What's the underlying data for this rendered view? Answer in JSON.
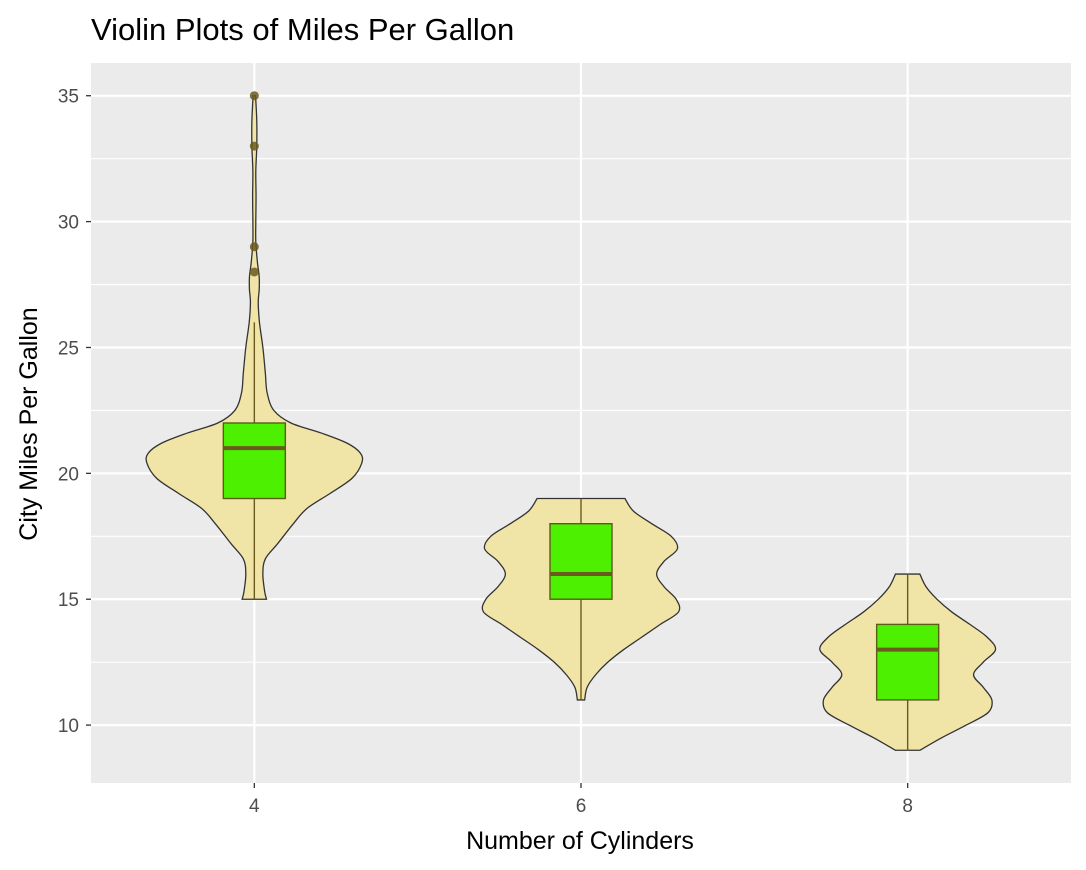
{
  "chart_data": {
    "type": "violin",
    "title": "Violin Plots of Miles Per Gallon",
    "xlabel": "Number of Cylinders",
    "ylabel": "City Miles Per Gallon",
    "categories": [
      "4",
      "6",
      "8"
    ],
    "xlim": [
      3,
      9
    ],
    "ylim": [
      7.7,
      36.3
    ],
    "yticks": [
      10,
      15,
      20,
      25,
      30,
      35
    ],
    "grid": true,
    "legend": "none",
    "colors": {
      "panel_background": "#ebebeb",
      "grid_line": "#ffffff",
      "violin_fill": "#f0e4a7",
      "violin_stroke": "#333333",
      "box_fill": "#4cf000",
      "box_stroke": "#5c5c1a",
      "median_line": "#6b5a1e",
      "whisker": "#6b5a1e",
      "outlier": "#6b5a1e"
    },
    "groups": [
      {
        "category": "4",
        "min": 15,
        "max": 35,
        "box": {
          "q1": 19,
          "median": 21,
          "q3": 22,
          "whisker_low": 15,
          "whisker_high": 26
        },
        "outliers": [
          28,
          29,
          33,
          35
        ],
        "density_profile": [
          [
            15.0,
            0.1
          ],
          [
            15.3,
            0.085
          ],
          [
            16.0,
            0.07
          ],
          [
            16.6,
            0.09
          ],
          [
            17.2,
            0.19
          ],
          [
            18.0,
            0.32
          ],
          [
            18.6,
            0.43
          ],
          [
            19.2,
            0.62
          ],
          [
            19.8,
            0.8
          ],
          [
            20.4,
            0.88
          ],
          [
            20.8,
            0.87
          ],
          [
            21.2,
            0.76
          ],
          [
            21.6,
            0.55
          ],
          [
            22.0,
            0.3
          ],
          [
            22.5,
            0.16
          ],
          [
            23.2,
            0.105
          ],
          [
            24.0,
            0.09
          ],
          [
            25.0,
            0.07
          ],
          [
            26.0,
            0.042
          ],
          [
            26.8,
            0.032
          ],
          [
            27.3,
            0.04
          ],
          [
            27.8,
            0.04
          ],
          [
            28.4,
            0.025
          ],
          [
            29.2,
            0.012
          ],
          [
            30.0,
            0.012
          ],
          [
            31.0,
            0.014
          ],
          [
            32.0,
            0.012
          ],
          [
            33.0,
            0.02
          ],
          [
            34.0,
            0.02
          ],
          [
            35.0,
            0.01
          ]
        ]
      },
      {
        "category": "6",
        "min": 11,
        "max": 19,
        "box": {
          "q1": 15,
          "median": 16,
          "q3": 18,
          "whisker_low": 11,
          "whisker_high": 19
        },
        "outliers": [],
        "density_profile": [
          [
            11.0,
            0.03
          ],
          [
            11.5,
            0.05
          ],
          [
            12.0,
            0.12
          ],
          [
            12.5,
            0.22
          ],
          [
            13.0,
            0.35
          ],
          [
            13.5,
            0.5
          ],
          [
            14.0,
            0.65
          ],
          [
            14.5,
            0.8
          ],
          [
            15.0,
            0.78
          ],
          [
            15.5,
            0.68
          ],
          [
            16.0,
            0.62
          ],
          [
            16.5,
            0.68
          ],
          [
            17.0,
            0.79
          ],
          [
            17.5,
            0.74
          ],
          [
            18.0,
            0.58
          ],
          [
            18.5,
            0.43
          ],
          [
            19.0,
            0.36
          ]
        ]
      },
      {
        "category": "8",
        "min": 9,
        "max": 16,
        "box": {
          "q1": 11,
          "median": 13,
          "q3": 14,
          "whisker_low": 9,
          "whisker_high": 16
        },
        "outliers": [],
        "density_profile": [
          [
            9.0,
            0.1
          ],
          [
            9.5,
            0.28
          ],
          [
            10.0,
            0.48
          ],
          [
            10.5,
            0.66
          ],
          [
            11.0,
            0.69
          ],
          [
            11.5,
            0.62
          ],
          [
            12.0,
            0.54
          ],
          [
            12.5,
            0.62
          ],
          [
            13.0,
            0.72
          ],
          [
            13.5,
            0.65
          ],
          [
            14.0,
            0.51
          ],
          [
            14.5,
            0.36
          ],
          [
            15.0,
            0.24
          ],
          [
            15.5,
            0.15
          ],
          [
            16.0,
            0.1
          ]
        ]
      }
    ]
  }
}
